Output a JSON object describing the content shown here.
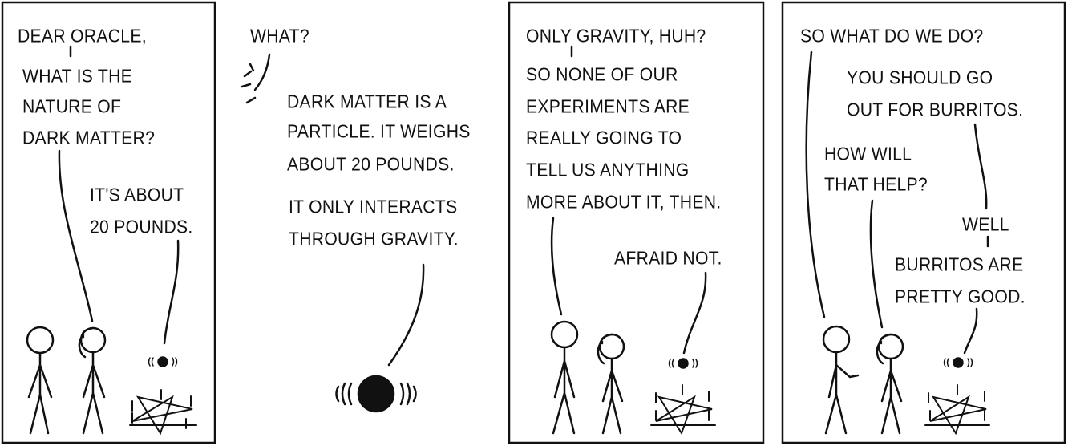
{
  "panels": [
    {
      "lines": [
        {
          "speaker": "person",
          "text": "DEAR ORACLE,"
        },
        {
          "speaker": "person",
          "text": "WHAT IS THE"
        },
        {
          "speaker": "person",
          "text": "NATURE OF"
        },
        {
          "speaker": "person",
          "text": "DARK MATTER?"
        },
        {
          "speaker": "oracle",
          "text": "IT'S ABOUT"
        },
        {
          "speaker": "oracle",
          "text": "20 POUNDS."
        }
      ]
    },
    {
      "lines": [
        {
          "speaker": "offscreen",
          "text": "WHAT?"
        },
        {
          "speaker": "oracle",
          "text": "DARK MATTER IS A"
        },
        {
          "speaker": "oracle",
          "text": "PARTICLE. IT WEIGHS"
        },
        {
          "speaker": "oracle",
          "text": "ABOUT 20 POUNDS."
        },
        {
          "speaker": "oracle",
          "text": "IT ONLY INTERACTS"
        },
        {
          "speaker": "oracle",
          "text": "THROUGH GRAVITY."
        }
      ]
    },
    {
      "lines": [
        {
          "speaker": "person",
          "text": "ONLY GRAVITY, HUH?"
        },
        {
          "speaker": "person",
          "text": "SO NONE OF OUR"
        },
        {
          "speaker": "person",
          "text": "EXPERIMENTS ARE"
        },
        {
          "speaker": "person",
          "text": "REALLY GOING TO"
        },
        {
          "speaker": "person",
          "text": "TELL US ANYTHING"
        },
        {
          "speaker": "person",
          "text": "MORE ABOUT IT, THEN."
        },
        {
          "speaker": "oracle",
          "text": "AFRAID NOT."
        }
      ]
    },
    {
      "lines": [
        {
          "speaker": "person",
          "text": "SO WHAT DO WE DO?"
        },
        {
          "speaker": "oracle",
          "text": "YOU SHOULD GO"
        },
        {
          "speaker": "oracle",
          "text": "OUT FOR BURRITOS."
        },
        {
          "speaker": "woman",
          "text": "HOW WILL"
        },
        {
          "speaker": "woman",
          "text": "THAT HELP?"
        },
        {
          "speaker": "oracle",
          "text": "WELL"
        },
        {
          "speaker": "oracle",
          "text": "BURRITOS ARE"
        },
        {
          "speaker": "oracle",
          "text": "PRETTY GOOD."
        }
      ]
    }
  ]
}
